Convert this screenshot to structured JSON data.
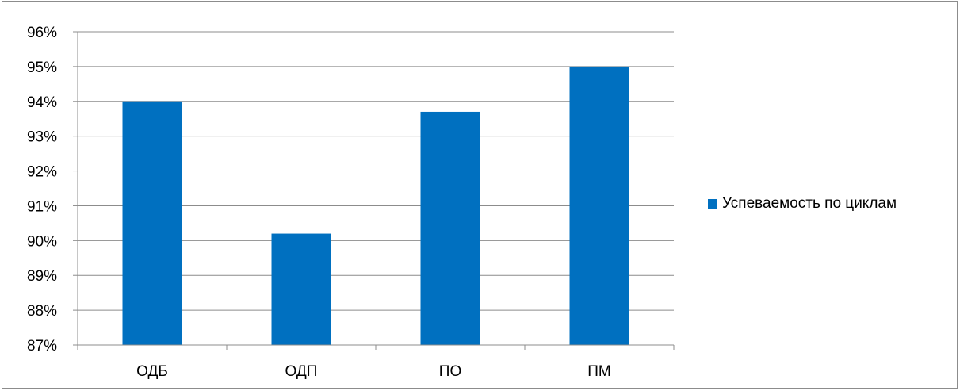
{
  "chart_data": {
    "type": "bar",
    "categories": [
      "ОДБ",
      "ОДП",
      "ПО",
      "ПМ"
    ],
    "series": [
      {
        "name": "Успеваемость по циклам",
        "values": [
          94.0,
          90.2,
          93.7,
          95.0
        ]
      }
    ],
    "yticks": [
      "87%",
      "88%",
      "89%",
      "90%",
      "91%",
      "92%",
      "93%",
      "94%",
      "95%",
      "96%"
    ],
    "ylim": [
      87,
      96
    ],
    "grid": true,
    "legend": "right",
    "title": "",
    "xlabel": "",
    "ylabel": "",
    "colors": {
      "bar": "#0070c0",
      "grid": "#8c8c8c",
      "axis": "#8c8c8c",
      "text": "#000000"
    }
  }
}
